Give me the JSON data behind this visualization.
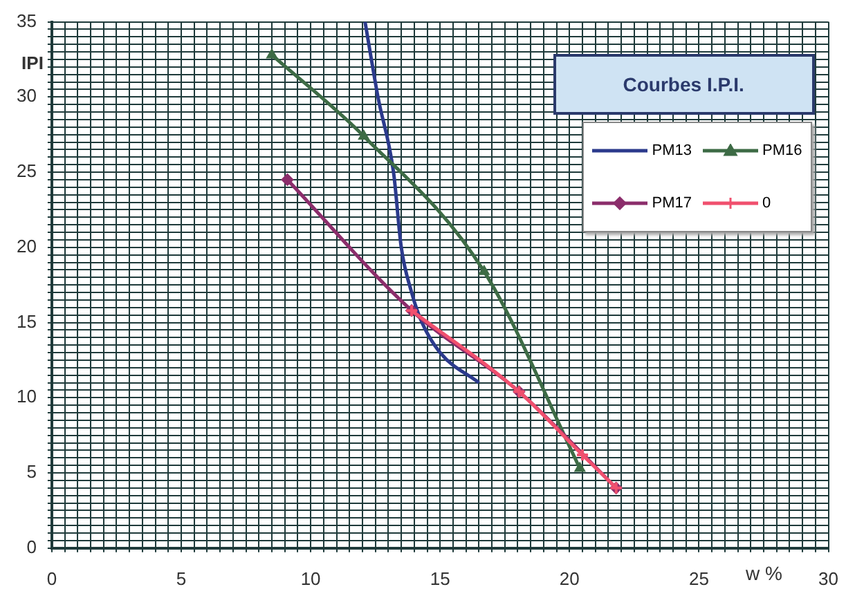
{
  "chart_data": {
    "type": "line",
    "title": "Courbes I.P.I.",
    "xlabel": "w %",
    "ylabel": "IPI",
    "xlim": [
      0,
      30
    ],
    "ylim": [
      0,
      35
    ],
    "xticks": [
      0,
      {
        "value": 0.5,
        "label": null
      },
      {
        "value": 1,
        "label": null
      },
      {
        "value": 1.5,
        "label": null
      },
      {
        "value": 2,
        "label": null
      },
      {
        "value": 2.5,
        "label": null
      },
      {
        "value": 3,
        "label": null
      },
      {
        "value": 3.5,
        "label": null
      },
      {
        "value": 4,
        "label": null
      },
      {
        "value": 4.5,
        "label": null
      },
      5,
      {
        "value": 5.5,
        "label": null
      },
      {
        "value": 6,
        "label": null
      },
      {
        "value": 6.5,
        "label": null
      },
      {
        "value": 7,
        "label": null
      },
      {
        "value": 7.5,
        "label": null
      },
      {
        "value": 8,
        "label": null
      },
      {
        "value": 8.5,
        "label": null
      },
      {
        "value": 9,
        "label": null
      },
      {
        "value": 9.5,
        "label": null
      },
      10,
      {
        "value": 10.5,
        "label": null
      },
      {
        "value": 11,
        "label": null
      },
      {
        "value": 11.5,
        "label": null
      },
      {
        "value": 12,
        "label": null
      },
      {
        "value": 12.5,
        "label": null
      },
      {
        "value": 13,
        "label": null
      },
      {
        "value": 13.5,
        "label": null
      },
      {
        "value": 14,
        "label": null
      },
      {
        "value": 14.5,
        "label": null
      },
      15,
      {
        "value": 15.5,
        "label": null
      },
      {
        "value": 16,
        "label": null
      },
      {
        "value": 16.5,
        "label": null
      },
      {
        "value": 17,
        "label": null
      },
      {
        "value": 17.5,
        "label": null
      },
      {
        "value": 18,
        "label": null
      },
      {
        "value": 18.5,
        "label": null
      },
      {
        "value": 19,
        "label": null
      },
      {
        "value": 19.5,
        "label": null
      },
      20,
      {
        "value": 20.5,
        "label": null
      },
      {
        "value": 21,
        "label": null
      },
      {
        "value": 21.5,
        "label": null
      },
      {
        "value": 22,
        "label": null
      },
      {
        "value": 22.5,
        "label": null
      },
      {
        "value": 23,
        "label": null
      },
      {
        "value": 23.5,
        "label": null
      },
      {
        "value": 24,
        "label": null
      },
      {
        "value": 24.5,
        "label": null
      },
      25,
      {
        "value": 25.5,
        "label": null
      },
      {
        "value": 26,
        "label": null
      },
      {
        "value": 26.5,
        "label": null
      },
      {
        "value": 27,
        "label": null
      },
      {
        "value": 27.5,
        "label": null
      },
      {
        "value": 28,
        "label": null
      },
      {
        "value": 28.5,
        "label": null
      },
      {
        "value": 29,
        "label": null
      },
      {
        "value": 29.5,
        "label": null
      },
      30
    ],
    "yticks": [
      0,
      {
        "value": 0.5,
        "label": null
      },
      {
        "value": 1,
        "label": null
      },
      {
        "value": 1.5,
        "label": null
      },
      {
        "value": 2,
        "label": null
      },
      {
        "value": 2.5,
        "label": null
      },
      {
        "value": 3,
        "label": null
      },
      {
        "value": 3.5,
        "label": null
      },
      {
        "value": 4,
        "label": null
      },
      {
        "value": 4.5,
        "label": null
      },
      5,
      {
        "value": 5.5,
        "label": null
      },
      {
        "value": 6,
        "label": null
      },
      {
        "value": 6.5,
        "label": null
      },
      {
        "value": 7,
        "label": null
      },
      {
        "value": 7.5,
        "label": null
      },
      {
        "value": 8,
        "label": null
      },
      {
        "value": 8.5,
        "label": null
      },
      {
        "value": 9,
        "label": null
      },
      {
        "value": 9.5,
        "label": null
      },
      10,
      {
        "value": 10.5,
        "label": null
      },
      {
        "value": 11,
        "label": null
      },
      {
        "value": 11.5,
        "label": null
      },
      {
        "value": 12,
        "label": null
      },
      {
        "value": 12.5,
        "label": null
      },
      {
        "value": 13,
        "label": null
      },
      {
        "value": 13.5,
        "label": null
      },
      {
        "value": 14,
        "label": null
      },
      {
        "value": 14.5,
        "label": null
      },
      15,
      {
        "value": 15.5,
        "label": null
      },
      {
        "value": 16,
        "label": null
      },
      {
        "value": 16.5,
        "label": null
      },
      {
        "value": 17,
        "label": null
      },
      {
        "value": 17.5,
        "label": null
      },
      {
        "value": 18,
        "label": null
      },
      {
        "value": 18.5,
        "label": null
      },
      {
        "value": 19,
        "label": null
      },
      {
        "value": 19.5,
        "label": null
      },
      20,
      {
        "value": 20.5,
        "label": null
      },
      {
        "value": 21,
        "label": null
      },
      {
        "value": 21.5,
        "label": null
      },
      {
        "value": 22,
        "label": null
      },
      {
        "value": 22.5,
        "label": null
      },
      {
        "value": 23,
        "label": null
      },
      {
        "value": 23.5,
        "label": null
      },
      {
        "value": 24,
        "label": null
      },
      {
        "value": 24.5,
        "label": null
      },
      25,
      {
        "value": 25.5,
        "label": null
      },
      {
        "value": 26,
        "label": null
      },
      {
        "value": 26.5,
        "label": null
      },
      {
        "value": 27,
        "label": null
      },
      {
        "value": 27.5,
        "label": null
      },
      {
        "value": 28,
        "label": null
      },
      {
        "value": 28.5,
        "label": null
      },
      {
        "value": 29,
        "label": null
      },
      {
        "value": 29.5,
        "label": null
      },
      30,
      {
        "value": 30.5,
        "label": null
      },
      {
        "value": 31,
        "label": null
      },
      {
        "value": 31.5,
        "label": null
      },
      {
        "value": 32,
        "label": null
      },
      {
        "value": 32.5,
        "label": null
      },
      {
        "value": 33,
        "label": null
      },
      {
        "value": 33.5,
        "label": null
      },
      {
        "value": 34,
        "label": null
      },
      {
        "value": 34.5,
        "label": null
      },
      35
    ],
    "grid": true,
    "legend": "top right",
    "line_style": "solid",
    "series": [
      {
        "name": "PM13",
        "color": "#2b3a8c",
        "marker": "none",
        "x": [
          12.1,
          12.6,
          13.2,
          13.5,
          13.9,
          14.3,
          15.0,
          16.5
        ],
        "values": [
          35,
          30,
          25,
          20,
          17,
          15,
          13,
          11
        ]
      },
      {
        "name": "PM16",
        "color": "#3d6b45",
        "marker": "triangle",
        "x": [
          8.5,
          12.05,
          16.7,
          20.4
        ],
        "values": [
          32.8,
          27.4,
          18.4,
          5.3
        ]
      },
      {
        "name": "PM17",
        "color": "#8b2d6b",
        "marker": "diamond",
        "x": [
          9.1,
          13.9,
          18.05,
          21.8
        ],
        "values": [
          24.5,
          15.8,
          10.4,
          4.0
        ]
      },
      {
        "name": "0",
        "color": "#f0506e",
        "marker": "cross",
        "x": [
          13.9,
          18.05,
          20.5,
          21.8
        ],
        "values": [
          15.8,
          10.4,
          6.2,
          4.0
        ]
      }
    ]
  }
}
